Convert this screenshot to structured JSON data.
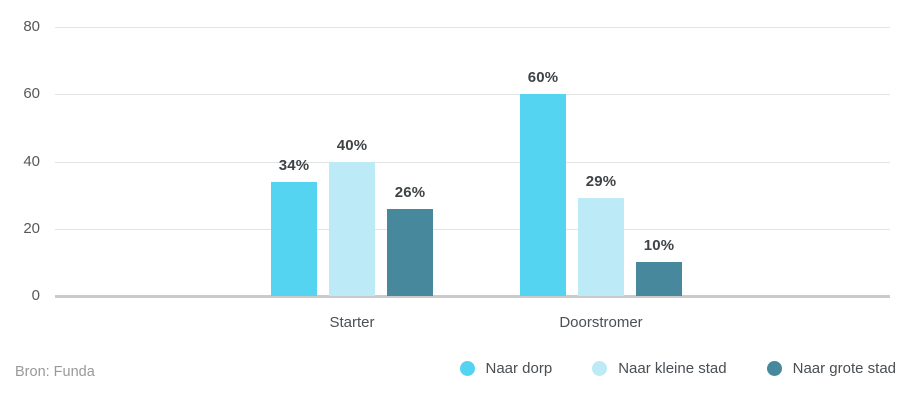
{
  "footer": {
    "source": "Bron: Funda"
  },
  "chart_data": {
    "type": "bar",
    "categories": [
      "Starter",
      "Doorstromer"
    ],
    "series": [
      {
        "name": "Naar dorp",
        "color": "#55D4F2",
        "values": [
          34,
          60
        ],
        "labels": [
          "34%",
          "60%"
        ]
      },
      {
        "name": "Naar kleine stad",
        "color": "#BCEBF7",
        "values": [
          40,
          29
        ],
        "labels": [
          "40%",
          "29%"
        ]
      },
      {
        "name": "Naar grote stad",
        "color": "#48889D",
        "values": [
          26,
          10
        ],
        "labels": [
          "26%",
          "10%"
        ]
      }
    ],
    "title": "",
    "xlabel": "",
    "ylabel": "",
    "ylim": [
      0,
      80
    ],
    "yticks": [
      0,
      20,
      40,
      60,
      80
    ],
    "grid": true,
    "legend_position": "bottom-right",
    "value_label_suffix": "%"
  },
  "colors": {
    "gridline": "#e3e4e5",
    "baseline": "#c9cacc",
    "value_label": "#3f4346",
    "axis_label": "#55595c",
    "source_label": "#97999b",
    "background": "#ffffff"
  }
}
